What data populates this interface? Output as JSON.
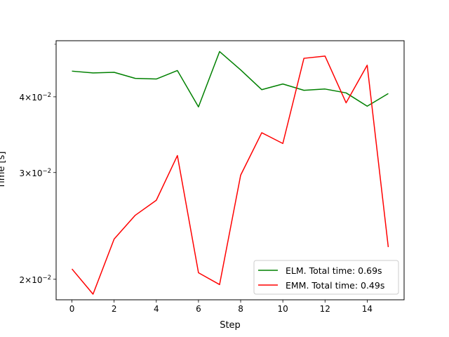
{
  "chart_data": {
    "type": "line",
    "xlabel": "Step",
    "ylabel": "Time [s]",
    "y_scale": "log",
    "xlim": [
      -0.75,
      15.75
    ],
    "ylim": [
      0.0185,
      0.0495
    ],
    "x_ticks": [
      0,
      2,
      4,
      6,
      8,
      10,
      12,
      14
    ],
    "y_ticks": [
      {
        "value": 0.02,
        "mantissa": "2",
        "exponent": "−2"
      },
      {
        "value": 0.03,
        "mantissa": "3",
        "exponent": "−2"
      },
      {
        "value": 0.04,
        "mantissa": "4",
        "exponent": "−2"
      }
    ],
    "grid": false,
    "legend_position": "lower-right",
    "x": [
      0,
      1,
      2,
      3,
      4,
      5,
      6,
      7,
      8,
      9,
      10,
      11,
      12,
      13,
      14,
      15
    ],
    "series": [
      {
        "name": "ELM. Total time: 0.69s",
        "color": "#008000",
        "values": [
          0.0441,
          0.0438,
          0.0439,
          0.0429,
          0.0428,
          0.0442,
          0.0385,
          0.0475,
          0.0443,
          0.0411,
          0.042,
          0.041,
          0.0412,
          0.0406,
          0.0386,
          0.0405
        ]
      },
      {
        "name": "EMM. Total time: 0.49s",
        "color": "#ff0000",
        "values": [
          0.0208,
          0.0189,
          0.0233,
          0.0255,
          0.027,
          0.032,
          0.0205,
          0.0196,
          0.0297,
          0.0349,
          0.0335,
          0.0463,
          0.0467,
          0.0391,
          0.0451,
          0.0226
        ]
      }
    ]
  }
}
